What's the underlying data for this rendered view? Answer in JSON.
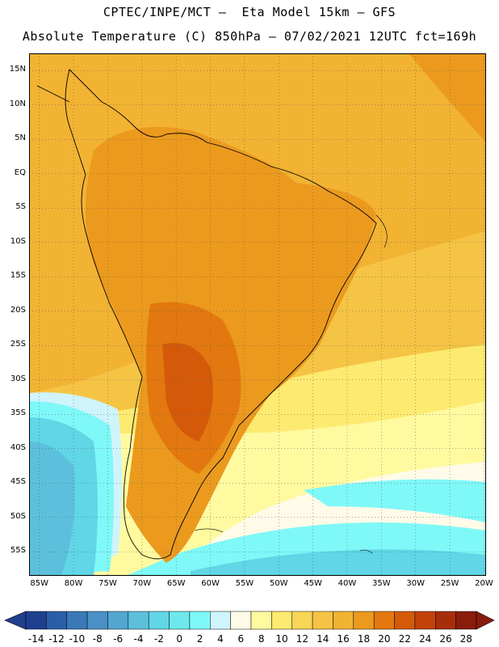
{
  "header": {
    "line1": "CPTEC/INPE/MCT –  Eta Model 15km – GFS",
    "line2": "Absolute Temperature (C) 850hPa – 07/02/2021 12UTC fct=169h"
  },
  "map": {
    "latitudes": [
      15,
      10,
      5,
      0,
      -5,
      -10,
      -15,
      -20,
      -25,
      -30,
      -35,
      -40,
      -45,
      -50,
      -55
    ],
    "latitude_labels": [
      "15N",
      "10N",
      "5N",
      "EQ",
      "5S",
      "10S",
      "15S",
      "20S",
      "25S",
      "30S",
      "35S",
      "40S",
      "45S",
      "50S",
      "55S"
    ],
    "longitudes": [
      -85,
      -80,
      -75,
      -70,
      -65,
      -60,
      -55,
      -50,
      -45,
      -40,
      -35,
      -30,
      -25,
      -20
    ],
    "longitude_labels": [
      "85W",
      "80W",
      "75W",
      "70W",
      "65W",
      "60W",
      "55W",
      "50W",
      "45W",
      "40W",
      "35W",
      "30W",
      "25W",
      "20W"
    ]
  },
  "colorbar": {
    "labels": [
      "-14",
      "-12",
      "-10",
      "-8",
      "-6",
      "-4",
      "-2",
      "0",
      "2",
      "4",
      "6",
      "8",
      "10",
      "12",
      "14",
      "16",
      "18",
      "20",
      "22",
      "24",
      "26",
      "28"
    ],
    "colors": [
      "#1f3f8f",
      "#2a5ea6",
      "#3a78b8",
      "#4a90c6",
      "#52a6cf",
      "#5cc0dc",
      "#60d6e6",
      "#6ee8ee",
      "#7ff8f8",
      "#cff4fb",
      "#fffbe8",
      "#fffaa0",
      "#fdea70",
      "#f9d558",
      "#f5c445",
      "#f2b333",
      "#eb9a1e",
      "#e2780f",
      "#d45a0a",
      "#c3420a",
      "#a72e0a",
      "#8a1c0c"
    ]
  }
}
